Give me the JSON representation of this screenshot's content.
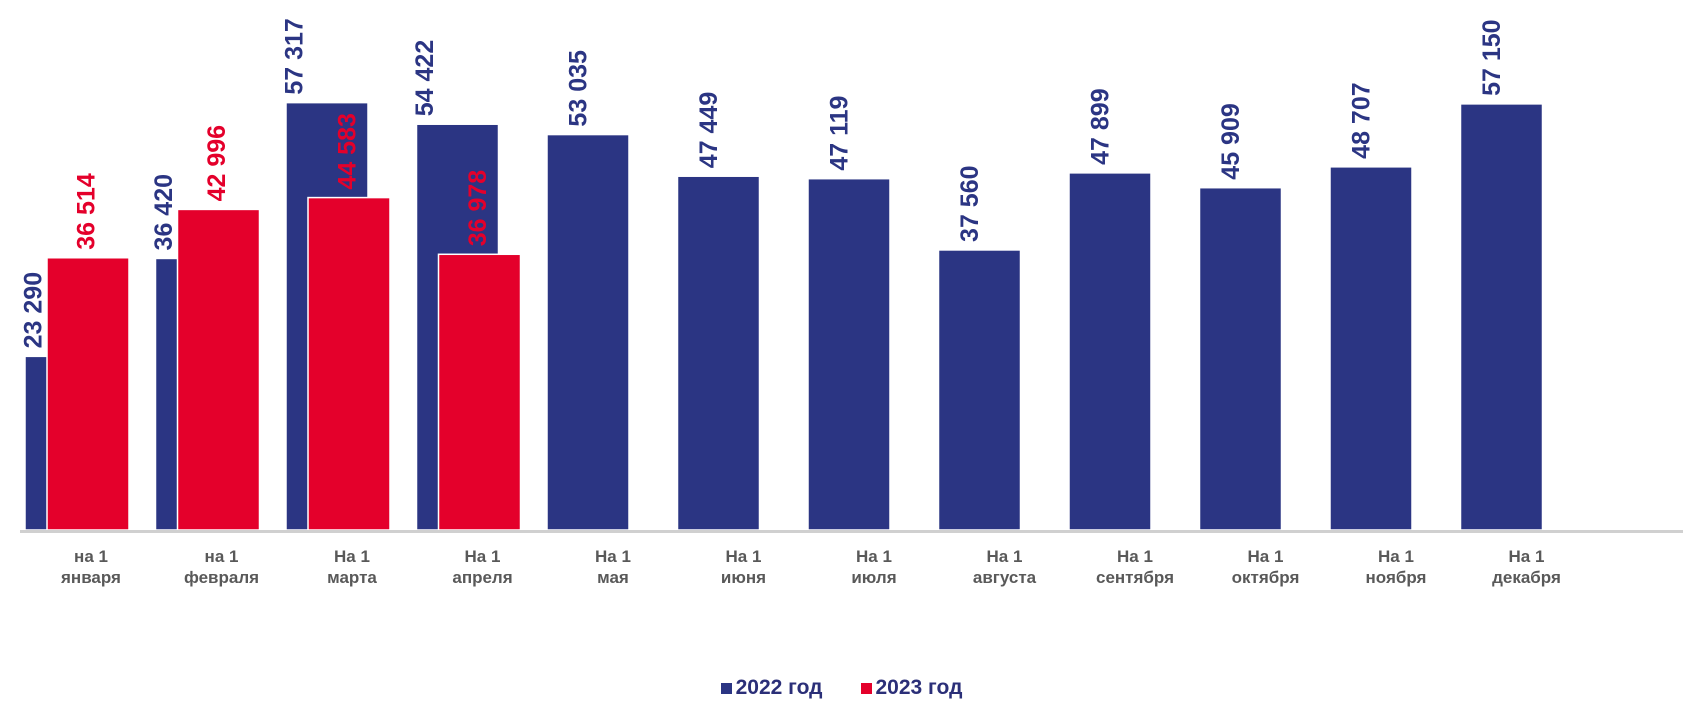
{
  "chart_data": {
    "type": "bar",
    "categories": [
      [
        "на 1",
        "января"
      ],
      [
        "на 1",
        "февраля"
      ],
      [
        "На 1",
        "марта"
      ],
      [
        "На 1",
        "апреля"
      ],
      [
        "На 1",
        "мая"
      ],
      [
        "На 1",
        "июня"
      ],
      [
        "На 1",
        "июля"
      ],
      [
        "На 1",
        "августа"
      ],
      [
        "На 1",
        "сентября"
      ],
      [
        "На 1",
        "октября"
      ],
      [
        "На 1",
        "ноября"
      ],
      [
        "На 1",
        "декабря"
      ]
    ],
    "series": [
      {
        "name": "2022 год",
        "color": "#2b3583",
        "values": [
          23290,
          36420,
          57317,
          54422,
          53035,
          47449,
          47119,
          37560,
          47899,
          45909,
          48707,
          57150
        ],
        "labels": [
          "23 290",
          "36 420",
          "57 317",
          "54 422",
          "53 035",
          "47 449",
          "47 119",
          "37 560",
          "47 899",
          "45 909",
          "48 707",
          "57 150"
        ]
      },
      {
        "name": "2023 год",
        "color": "#e4002b",
        "values": [
          36514,
          42996,
          44583,
          36978,
          null,
          null,
          null,
          null,
          null,
          null,
          null,
          null
        ],
        "labels": [
          "36 514",
          "42 996",
          "44 583",
          "36 978",
          "",
          "",
          "",
          "",
          "",
          "",
          "",
          ""
        ]
      }
    ],
    "ylim": [
      0,
      60000
    ],
    "grid": false,
    "legend_position": "bottom",
    "title": "",
    "xlabel": "",
    "ylabel": ""
  }
}
